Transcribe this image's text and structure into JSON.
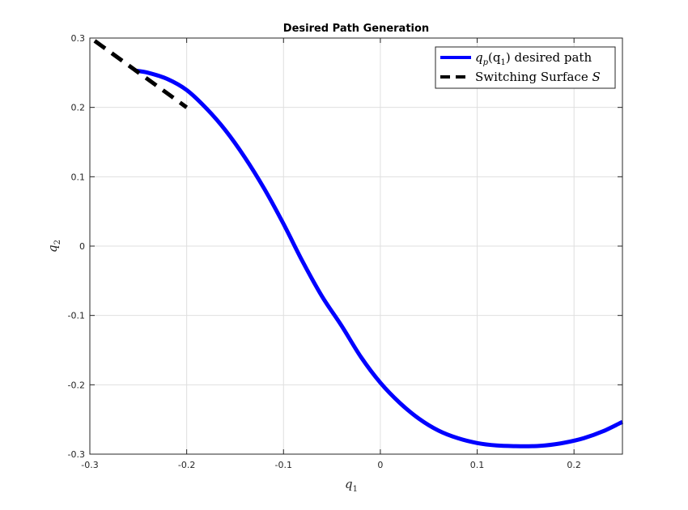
{
  "chart_data": {
    "type": "line",
    "title": "Desired Path Generation",
    "xlabel": "q",
    "xlabel_sub": "1",
    "ylabel": "q",
    "ylabel_sub": "2",
    "xlim": [
      -0.3,
      0.25
    ],
    "ylim": [
      -0.3,
      0.3
    ],
    "xticks": [
      -0.3,
      -0.2,
      -0.1,
      0,
      0.1,
      0.2
    ],
    "xtick_labels": [
      "-0.3",
      "-0.2",
      "-0.1",
      "0",
      "0.1",
      "0.2"
    ],
    "yticks": [
      -0.3,
      -0.2,
      -0.1,
      0,
      0.1,
      0.2,
      0.3
    ],
    "ytick_labels": [
      "-0.3",
      "-0.2",
      "-0.1",
      "0",
      "0.1",
      "0.2",
      "0.3"
    ],
    "grid": true,
    "legend_position": "top-right",
    "series": [
      {
        "name": "q_p(q_1) desired path",
        "legend_math": "q",
        "legend_math_sub": "p",
        "legend_paren": "(q",
        "legend_paren_sub": "1",
        "legend_text": ") desired path",
        "color": "#0000ff",
        "style": "solid",
        "x": [
          -0.253,
          -0.24,
          -0.22,
          -0.2,
          -0.18,
          -0.16,
          -0.14,
          -0.12,
          -0.1,
          -0.08,
          -0.06,
          -0.04,
          -0.02,
          0.0,
          0.02,
          0.04,
          0.06,
          0.08,
          0.1,
          0.12,
          0.14,
          0.157,
          0.17,
          0.19,
          0.21,
          0.23,
          0.25
        ],
        "y": [
          0.253,
          0.25,
          0.241,
          0.225,
          0.199,
          0.167,
          0.128,
          0.083,
          0.032,
          -0.023,
          -0.073,
          -0.115,
          -0.16,
          -0.197,
          -0.226,
          -0.249,
          -0.266,
          -0.277,
          -0.284,
          -0.2875,
          -0.2885,
          -0.2885,
          -0.2875,
          -0.2835,
          -0.277,
          -0.267,
          -0.2535
        ]
      },
      {
        "name": "Switching Surface S",
        "legend_text": "Switching Surface ",
        "legend_symbol": "S",
        "color": "#000000",
        "style": "dashed",
        "x": [
          -0.295,
          -0.2
        ],
        "y": [
          0.296,
          0.2
        ]
      }
    ]
  }
}
